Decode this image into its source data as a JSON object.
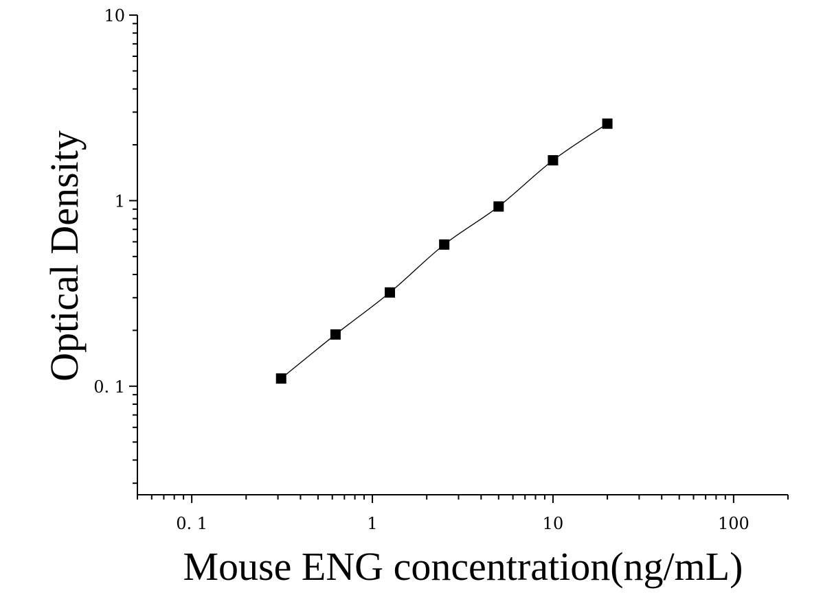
{
  "chart_data": {
    "type": "scatter",
    "xlabel": "Mouse ENG concentration(ng/mL)",
    "ylabel": "Optical Density",
    "x_scale": "log",
    "y_scale": "log",
    "xlim": [
      0.05,
      200
    ],
    "ylim": [
      0.026,
      10
    ],
    "x_ticks": [
      {
        "value": 0.1,
        "label": "0. 1"
      },
      {
        "value": 1,
        "label": "1"
      },
      {
        "value": 10,
        "label": "10"
      },
      {
        "value": 100,
        "label": "100"
      }
    ],
    "y_ticks": [
      {
        "value": 10,
        "label": "10"
      },
      {
        "value": 1,
        "label": "1"
      },
      {
        "value": 0.1,
        "label": "0. 1"
      }
    ],
    "grid": false,
    "marker": "square",
    "colors": {
      "marker": "#000000",
      "line": "#000000"
    },
    "points": [
      {
        "x": 0.3125,
        "y": 0.11
      },
      {
        "x": 0.625,
        "y": 0.19
      },
      {
        "x": 1.25,
        "y": 0.32
      },
      {
        "x": 2.5,
        "y": 0.58
      },
      {
        "x": 5,
        "y": 0.93
      },
      {
        "x": 10,
        "y": 1.65
      },
      {
        "x": 20,
        "y": 2.6
      }
    ],
    "fit_curve": true
  }
}
